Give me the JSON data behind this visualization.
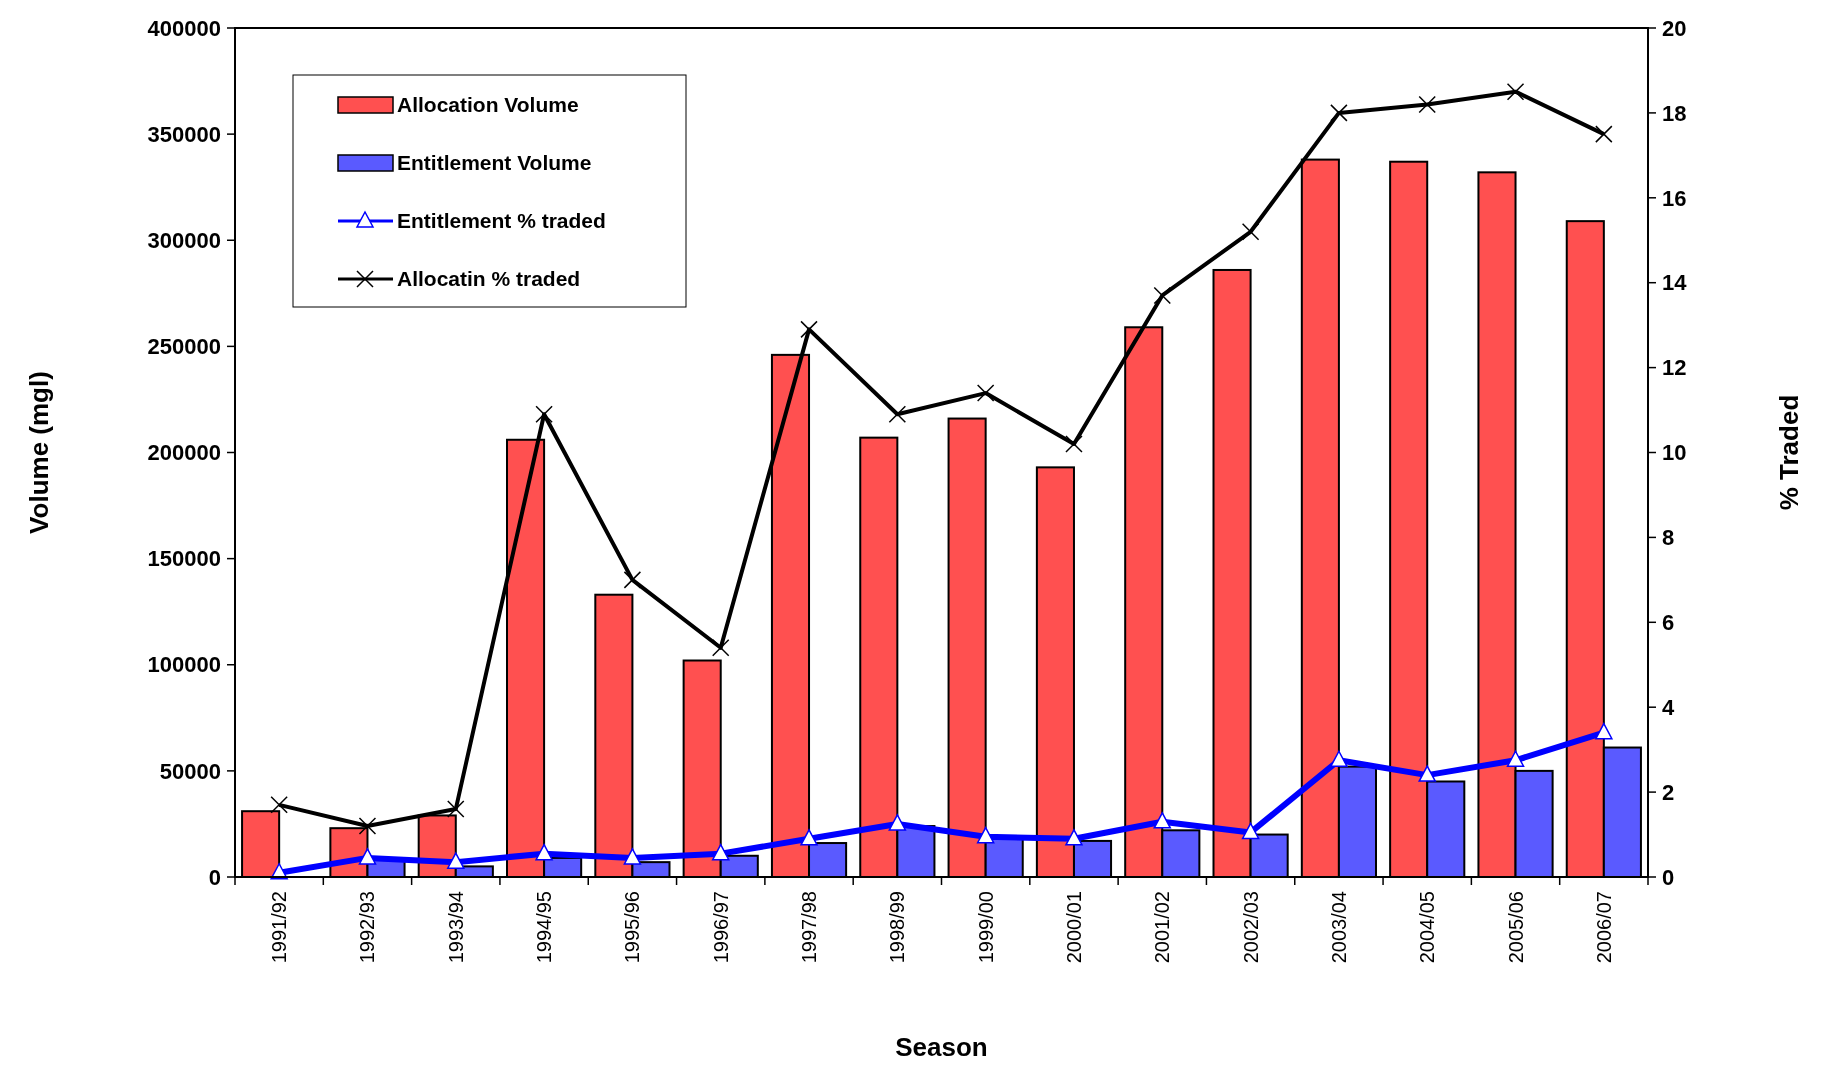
{
  "chart_data": {
    "type": "bar",
    "xlabel": "Season",
    "ylabel": "Volume (mgl)",
    "y2label": "% Traded",
    "categories": [
      "1991/92",
      "1992/93",
      "1993/94",
      "1994/95",
      "1995/96",
      "1996/97",
      "1997/98",
      "1998/99",
      "1999/00",
      "2000/01",
      "2001/02",
      "2002/03",
      "2003/04",
      "2004/05",
      "2005/06",
      "2006/07"
    ],
    "series": [
      {
        "name": "Allocation Volume",
        "color": "#ff5050",
        "values": [
          31000,
          23000,
          29000,
          206000,
          133000,
          102000,
          246000,
          207000,
          216000,
          193000,
          259000,
          286000,
          338000,
          337000,
          332000,
          309000
        ]
      },
      {
        "name": "Entitlement Volume",
        "color": "#5a5aff",
        "values": [
          null,
          8000,
          5000,
          9000,
          7000,
          10000,
          16000,
          24000,
          18000,
          17000,
          22000,
          20000,
          52000,
          45000,
          50000,
          61000
        ]
      },
      {
        "name": "Entitlement % traded",
        "type": "line",
        "axis": "y2",
        "color": "#0000ff",
        "marker": "triangle",
        "values": [
          0.1,
          0.45,
          0.35,
          0.55,
          0.45,
          0.55,
          0.9,
          1.25,
          0.95,
          0.9,
          1.3,
          1.05,
          2.75,
          2.4,
          2.75,
          3.4
        ]
      },
      {
        "name": "Allocatin % traded",
        "type": "line",
        "axis": "y2",
        "color": "#000000",
        "marker": "cross",
        "values": [
          1.7,
          1.2,
          1.6,
          10.9,
          7.0,
          5.4,
          12.9,
          10.9,
          11.4,
          10.2,
          13.7,
          15.2,
          18.0,
          18.2,
          18.5,
          17.5
        ]
      }
    ],
    "ylim": [
      0,
      400000
    ],
    "yticks": [
      0,
      50000,
      100000,
      150000,
      200000,
      250000,
      300000,
      350000,
      400000
    ],
    "y2lim": [
      0,
      20
    ],
    "y2ticks": [
      0,
      2,
      4,
      6,
      8,
      10,
      12,
      14,
      16,
      18,
      20
    ],
    "grid": false,
    "legend": "top left"
  }
}
